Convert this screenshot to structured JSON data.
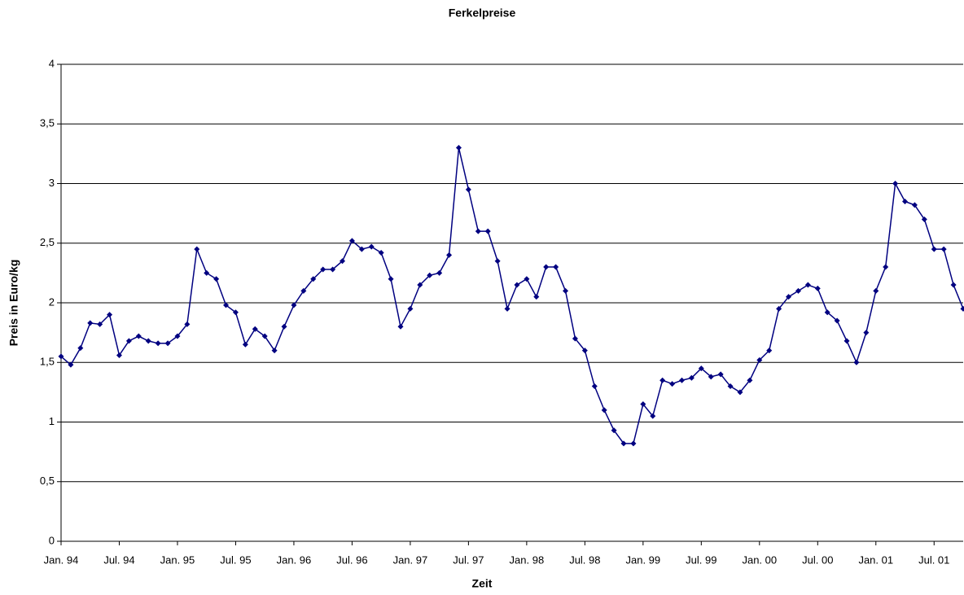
{
  "chart_data": {
    "type": "line",
    "title": "Ferkelpreise",
    "x_label": "Zeit",
    "y_label": "Preis in Euro/kg",
    "categories": [
      "Jan. 94",
      null,
      null,
      null,
      null,
      null,
      "Jul. 94",
      null,
      null,
      null,
      null,
      null,
      "Jan. 95",
      null,
      null,
      null,
      null,
      null,
      "Jul. 95",
      null,
      null,
      null,
      null,
      null,
      "Jan. 96",
      null,
      null,
      null,
      null,
      null,
      "Jul. 96",
      null,
      null,
      null,
      null,
      null,
      "Jan. 97",
      null,
      null,
      null,
      null,
      null,
      "Jul. 97",
      null,
      null,
      null,
      null,
      null,
      "Jan. 98",
      null,
      null,
      null,
      null,
      null,
      "Jul. 98",
      null,
      null,
      null,
      null,
      null,
      "Jan. 99",
      null,
      null,
      null,
      null,
      null,
      "Jul. 99",
      null,
      null,
      null,
      null,
      null,
      "Jan. 00",
      null,
      null,
      null,
      null,
      null,
      "Jul. 00",
      null,
      null,
      null,
      null,
      null,
      "Jan. 01",
      null,
      null,
      null,
      null,
      null,
      "Jul. 01",
      null,
      null,
      null
    ],
    "series": [
      {
        "name": "Ferkelpreise",
        "color": "#000080",
        "values": [
          1.55,
          1.48,
          1.62,
          1.83,
          1.82,
          1.9,
          1.56,
          1.68,
          1.72,
          1.68,
          1.66,
          1.66,
          1.72,
          1.82,
          2.45,
          2.25,
          2.2,
          1.98,
          1.92,
          1.65,
          1.78,
          1.72,
          1.6,
          1.8,
          1.98,
          2.1,
          2.2,
          2.28,
          2.28,
          2.35,
          2.52,
          2.45,
          2.47,
          2.42,
          2.2,
          1.8,
          1.95,
          2.15,
          2.23,
          2.25,
          2.4,
          3.3,
          2.95,
          2.6,
          2.6,
          2.35,
          1.95,
          2.15,
          2.2,
          2.05,
          2.3,
          2.3,
          2.1,
          1.7,
          1.6,
          1.3,
          1.1,
          0.93,
          0.82,
          0.82,
          1.15,
          1.05,
          1.35,
          1.32,
          1.35,
          1.37,
          1.45,
          1.38,
          1.4,
          1.3,
          1.25,
          1.35,
          1.52,
          1.6,
          1.95,
          2.05,
          2.1,
          2.15,
          2.12,
          1.92,
          1.85,
          1.68,
          1.5,
          1.75,
          2.1,
          2.3,
          3.0,
          2.85,
          2.82,
          2.7,
          2.45,
          2.45,
          2.15,
          1.95
        ]
      }
    ],
    "ylim": [
      0,
      4
    ],
    "yticks": [
      0,
      {
        "value": 0.5,
        "label": "0,5"
      },
      1,
      {
        "value": 1.5,
        "label": "1,5"
      },
      2,
      {
        "value": 2.5,
        "label": "2,5"
      },
      3,
      {
        "value": 3.5,
        "label": "3,5"
      },
      4
    ],
    "grid": true
  }
}
